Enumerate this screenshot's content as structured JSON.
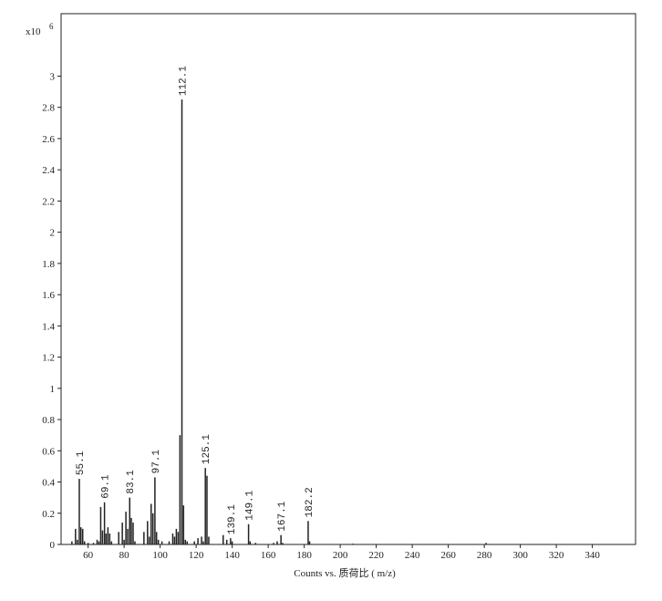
{
  "chart_data": {
    "type": "spectrum",
    "x_label": "Counts vs. 质荷比 ( m/z)",
    "y_multiplier": "x10",
    "y_multiplier_exponent": "6",
    "color": "#222222",
    "x": [
      51,
      53,
      54,
      55.1,
      56,
      57,
      58,
      60,
      63,
      65,
      66,
      67,
      68,
      69.1,
      70,
      71,
      72,
      73,
      77,
      79,
      80,
      81,
      82,
      83.1,
      84,
      85,
      86,
      91,
      93,
      94,
      95,
      96,
      97.1,
      98,
      99,
      101,
      105,
      107,
      108,
      109,
      110,
      111,
      112.1,
      113,
      114,
      115,
      119,
      121,
      123,
      124,
      125.1,
      126,
      127,
      135,
      137,
      139.1,
      140,
      149.1,
      150,
      153,
      163,
      165,
      167.1,
      168,
      182.2,
      183,
      207,
      281
    ],
    "values": [
      0.02,
      0.1,
      0.03,
      0.42,
      0.11,
      0.1,
      0.02,
      0.01,
      0.01,
      0.03,
      0.02,
      0.24,
      0.09,
      0.27,
      0.07,
      0.11,
      0.07,
      0.02,
      0.08,
      0.14,
      0.03,
      0.21,
      0.1,
      0.3,
      0.17,
      0.14,
      0.02,
      0.08,
      0.15,
      0.05,
      0.26,
      0.2,
      0.43,
      0.08,
      0.03,
      0.02,
      0.02,
      0.07,
      0.05,
      0.1,
      0.08,
      0.7,
      2.85,
      0.25,
      0.03,
      0.02,
      0.02,
      0.04,
      0.05,
      0.02,
      0.49,
      0.44,
      0.05,
      0.06,
      0.03,
      0.04,
      0.02,
      0.13,
      0.02,
      0.01,
      0.01,
      0.02,
      0.06,
      0.01,
      0.15,
      0.02,
      0.005,
      0.01
    ],
    "annotations": [
      55.1,
      69.1,
      83.1,
      97.1,
      112.1,
      125.1,
      139.1,
      149.1,
      167.1,
      182.2
    ],
    "xlim": [
      45,
      364
    ],
    "xticks": [
      60,
      80,
      100,
      120,
      140,
      160,
      180,
      200,
      220,
      240,
      260,
      280,
      300,
      320,
      340
    ],
    "ylim": [
      0,
      3.4
    ],
    "yticks": [
      0,
      0.2,
      0.4,
      0.6,
      0.8,
      1,
      1.2,
      1.4,
      1.6,
      1.8,
      2,
      2.2,
      2.4,
      2.6,
      2.8,
      3
    ]
  }
}
